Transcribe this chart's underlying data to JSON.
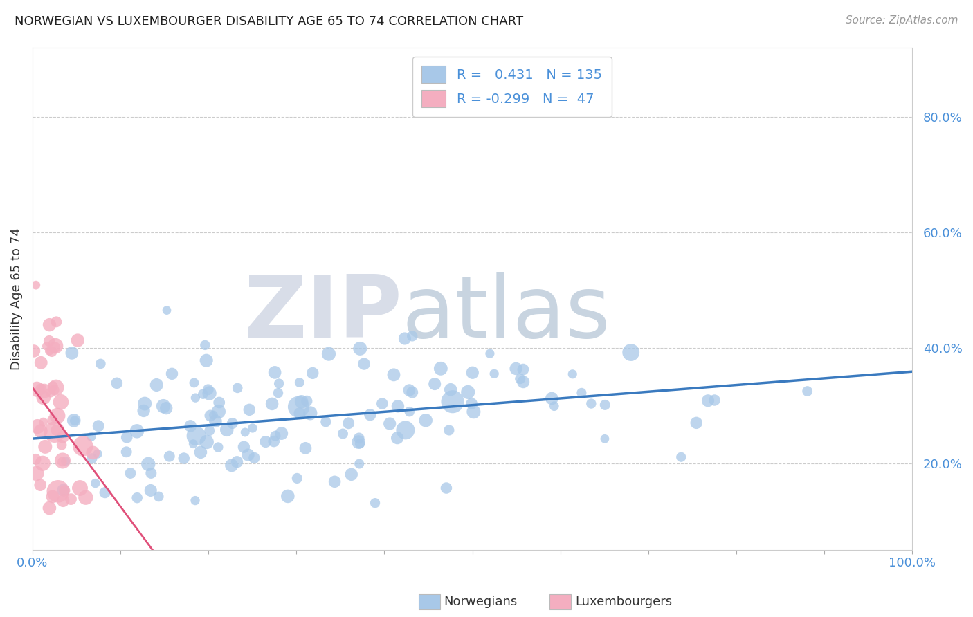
{
  "title": "NORWEGIAN VS LUXEMBOURGER DISABILITY AGE 65 TO 74 CORRELATION CHART",
  "source": "Source: ZipAtlas.com",
  "ylabel": "Disability Age 65 to 74",
  "xlim": [
    0.0,
    1.0
  ],
  "ylim": [
    0.05,
    0.92
  ],
  "norwegian_R": 0.431,
  "norwegian_N": 135,
  "luxembourger_R": -0.299,
  "luxembourger_N": 47,
  "norwegian_color": "#a8c8e8",
  "luxembourger_color": "#f4aec0",
  "norwegian_line_color": "#3a7abf",
  "luxembourger_line_color": "#e0507a",
  "background_color": "#ffffff",
  "watermark_color": "#d0d8e8",
  "legend_norwegian": "Norwegians",
  "legend_luxembourger": "Luxembourgers",
  "title_fontsize": 13,
  "source_fontsize": 11,
  "tick_fontsize": 13,
  "ylabel_fontsize": 13
}
